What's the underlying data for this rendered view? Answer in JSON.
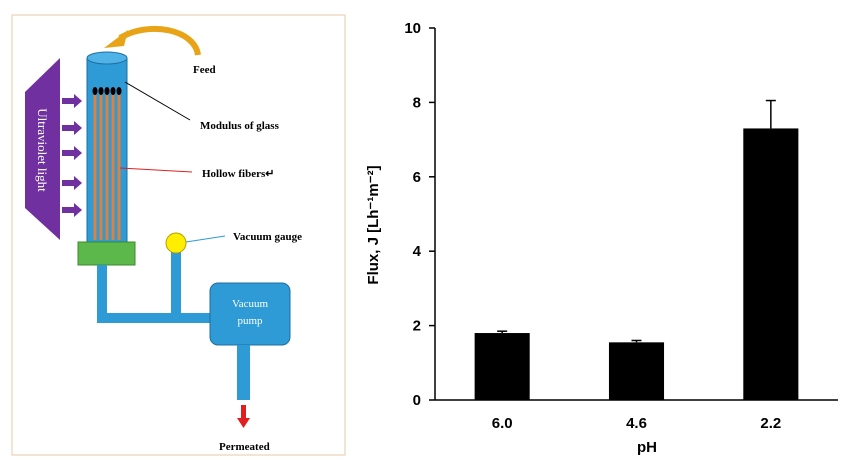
{
  "diagram": {
    "feed": "Feed",
    "modulus": "Modulus of glass",
    "fibers": "Hollow fibers↵",
    "uv": "Ultraviolet light",
    "gauge": "Vacuum gauge",
    "pump": [
      "Vacuum",
      "pump"
    ],
    "permeated": "Permeated"
  },
  "chart_data": {
    "type": "bar",
    "x_label": "pH",
    "y_label": "Flux, J [Lh⁻¹m⁻²]",
    "categories": [
      "6.0",
      "4.6",
      "2.2"
    ],
    "values": [
      1.8,
      1.55,
      7.3
    ],
    "errors": [
      0.05,
      0.05,
      0.75
    ],
    "color": "#000000",
    "ylim": [
      0,
      10
    ],
    "yticks": [
      0,
      2,
      4,
      6,
      8,
      10
    ],
    "grid": false
  }
}
